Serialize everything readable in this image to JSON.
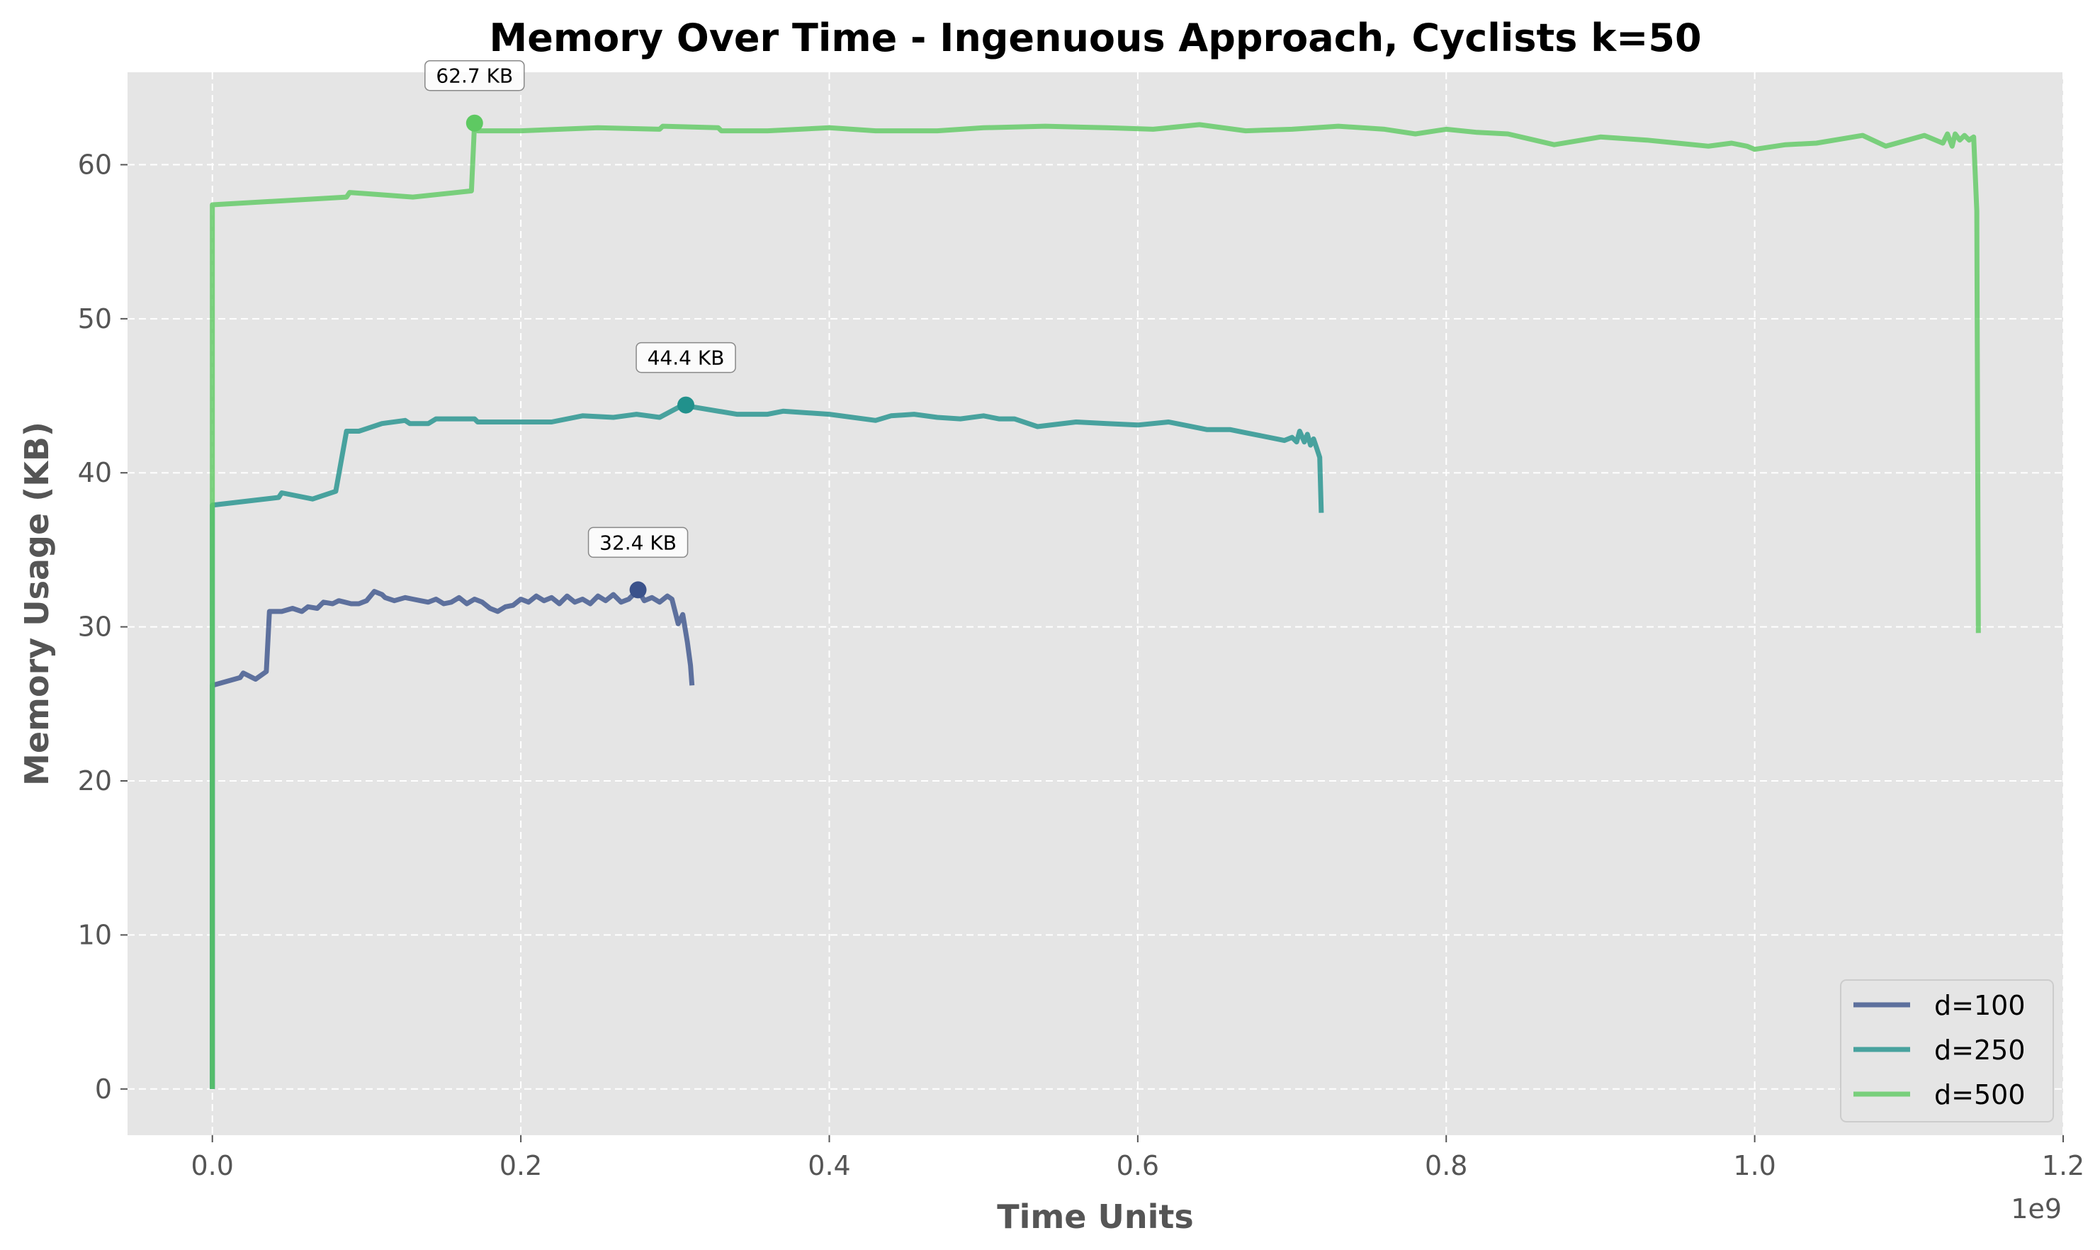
{
  "chart_data": {
    "type": "line",
    "title": "Memory Over Time - Ingenuous Approach, Cyclists k=50",
    "xlabel": "Time Units",
    "ylabel": "Memory Usage (KB)",
    "x_offset_label": "1e9",
    "xlim": [
      -0.055,
      1.2
    ],
    "ylim": [
      -3,
      66
    ],
    "xticks": [
      0.0,
      0.2,
      0.4,
      0.6,
      0.8,
      1.0,
      1.2
    ],
    "xtick_labels": [
      "0.0",
      "0.2",
      "0.4",
      "0.6",
      "0.8",
      "1.0",
      "1.2"
    ],
    "yticks": [
      0,
      10,
      20,
      30,
      40,
      50,
      60
    ],
    "ytick_labels": [
      "0",
      "10",
      "20",
      "30",
      "40",
      "50",
      "60"
    ],
    "grid": true,
    "legend_position": "lower-right",
    "series": [
      {
        "name": "d=100",
        "color": "#3b528b",
        "x": [
          0.0,
          0.0,
          0.018,
          0.02,
          0.028,
          0.035,
          0.037,
          0.045,
          0.052,
          0.058,
          0.062,
          0.068,
          0.072,
          0.078,
          0.082,
          0.086,
          0.09,
          0.095,
          0.1,
          0.105,
          0.11,
          0.112,
          0.118,
          0.125,
          0.13,
          0.135,
          0.14,
          0.145,
          0.15,
          0.155,
          0.16,
          0.165,
          0.17,
          0.175,
          0.18,
          0.185,
          0.19,
          0.195,
          0.2,
          0.205,
          0.21,
          0.215,
          0.22,
          0.225,
          0.23,
          0.235,
          0.24,
          0.245,
          0.25,
          0.255,
          0.26,
          0.265,
          0.27,
          0.276,
          0.28,
          0.285,
          0.29,
          0.295,
          0.298,
          0.3,
          0.302,
          0.305,
          0.308,
          0.31,
          0.311
        ],
        "y": [
          0.0,
          26.2,
          26.7,
          27.0,
          26.6,
          27.1,
          31.0,
          31.0,
          31.2,
          31.0,
          31.3,
          31.2,
          31.6,
          31.5,
          31.7,
          31.6,
          31.5,
          31.5,
          31.7,
          32.3,
          32.1,
          31.9,
          31.7,
          31.9,
          31.8,
          31.7,
          31.6,
          31.8,
          31.5,
          31.6,
          31.9,
          31.5,
          31.8,
          31.6,
          31.2,
          31.0,
          31.3,
          31.4,
          31.8,
          31.6,
          32.0,
          31.7,
          31.9,
          31.5,
          32.0,
          31.6,
          31.8,
          31.5,
          32.0,
          31.7,
          32.1,
          31.6,
          31.8,
          32.4,
          31.7,
          31.9,
          31.6,
          32.0,
          31.8,
          31.0,
          30.2,
          30.8,
          29.0,
          27.5,
          26.2
        ],
        "peak": {
          "x": 0.276,
          "y": 32.4,
          "label": "32.4 KB"
        }
      },
      {
        "name": "d=250",
        "color": "#21918c",
        "x": [
          0.0,
          0.0,
          0.043,
          0.045,
          0.065,
          0.08,
          0.087,
          0.09,
          0.095,
          0.11,
          0.125,
          0.128,
          0.14,
          0.145,
          0.155,
          0.17,
          0.172,
          0.22,
          0.24,
          0.26,
          0.275,
          0.29,
          0.305,
          0.31,
          0.34,
          0.36,
          0.37,
          0.4,
          0.43,
          0.44,
          0.455,
          0.47,
          0.485,
          0.5,
          0.51,
          0.52,
          0.535,
          0.56,
          0.58,
          0.6,
          0.62,
          0.63,
          0.645,
          0.66,
          0.67,
          0.68,
          0.695,
          0.7,
          0.703,
          0.705,
          0.708,
          0.71,
          0.712,
          0.714,
          0.716,
          0.718,
          0.719
        ],
        "y": [
          0.0,
          37.9,
          38.4,
          38.7,
          38.3,
          38.8,
          42.7,
          42.7,
          42.7,
          43.2,
          43.4,
          43.2,
          43.2,
          43.5,
          43.5,
          43.5,
          43.3,
          43.3,
          43.7,
          43.6,
          43.8,
          43.6,
          44.4,
          44.3,
          43.8,
          43.8,
          44.0,
          43.8,
          43.4,
          43.7,
          43.8,
          43.6,
          43.5,
          43.7,
          43.5,
          43.5,
          43.0,
          43.3,
          43.2,
          43.1,
          43.3,
          43.1,
          42.8,
          42.8,
          42.6,
          42.4,
          42.1,
          42.3,
          42.0,
          42.7,
          42.0,
          42.5,
          41.8,
          42.2,
          41.6,
          41.0,
          37.4
        ],
        "peak": {
          "x": 0.307,
          "y": 44.4,
          "label": "44.4 KB"
        }
      },
      {
        "name": "d=500",
        "color": "#5ec962",
        "x": [
          0.0,
          0.0,
          0.087,
          0.089,
          0.13,
          0.168,
          0.17,
          0.172,
          0.2,
          0.25,
          0.29,
          0.292,
          0.328,
          0.33,
          0.36,
          0.4,
          0.43,
          0.47,
          0.5,
          0.54,
          0.58,
          0.61,
          0.64,
          0.67,
          0.7,
          0.73,
          0.76,
          0.78,
          0.8,
          0.82,
          0.84,
          0.87,
          0.9,
          0.93,
          0.95,
          0.97,
          0.985,
          0.995,
          1.0,
          1.02,
          1.04,
          1.07,
          1.085,
          1.11,
          1.122,
          1.125,
          1.128,
          1.13,
          1.133,
          1.136,
          1.139,
          1.142,
          1.144,
          1.145
        ],
        "y": [
          0.0,
          57.4,
          57.9,
          58.2,
          57.9,
          58.3,
          62.7,
          62.2,
          62.2,
          62.4,
          62.3,
          62.5,
          62.4,
          62.2,
          62.2,
          62.4,
          62.2,
          62.2,
          62.4,
          62.5,
          62.4,
          62.3,
          62.6,
          62.2,
          62.3,
          62.5,
          62.3,
          62.0,
          62.3,
          62.1,
          62.0,
          61.3,
          61.8,
          61.6,
          61.4,
          61.2,
          61.4,
          61.2,
          61.0,
          61.3,
          61.4,
          61.9,
          61.2,
          61.9,
          61.4,
          62.0,
          61.2,
          62.0,
          61.6,
          61.9,
          61.6,
          61.8,
          57.0,
          29.6
        ],
        "peak": {
          "x": 0.17,
          "y": 62.7,
          "label": "62.7 KB"
        }
      }
    ]
  }
}
